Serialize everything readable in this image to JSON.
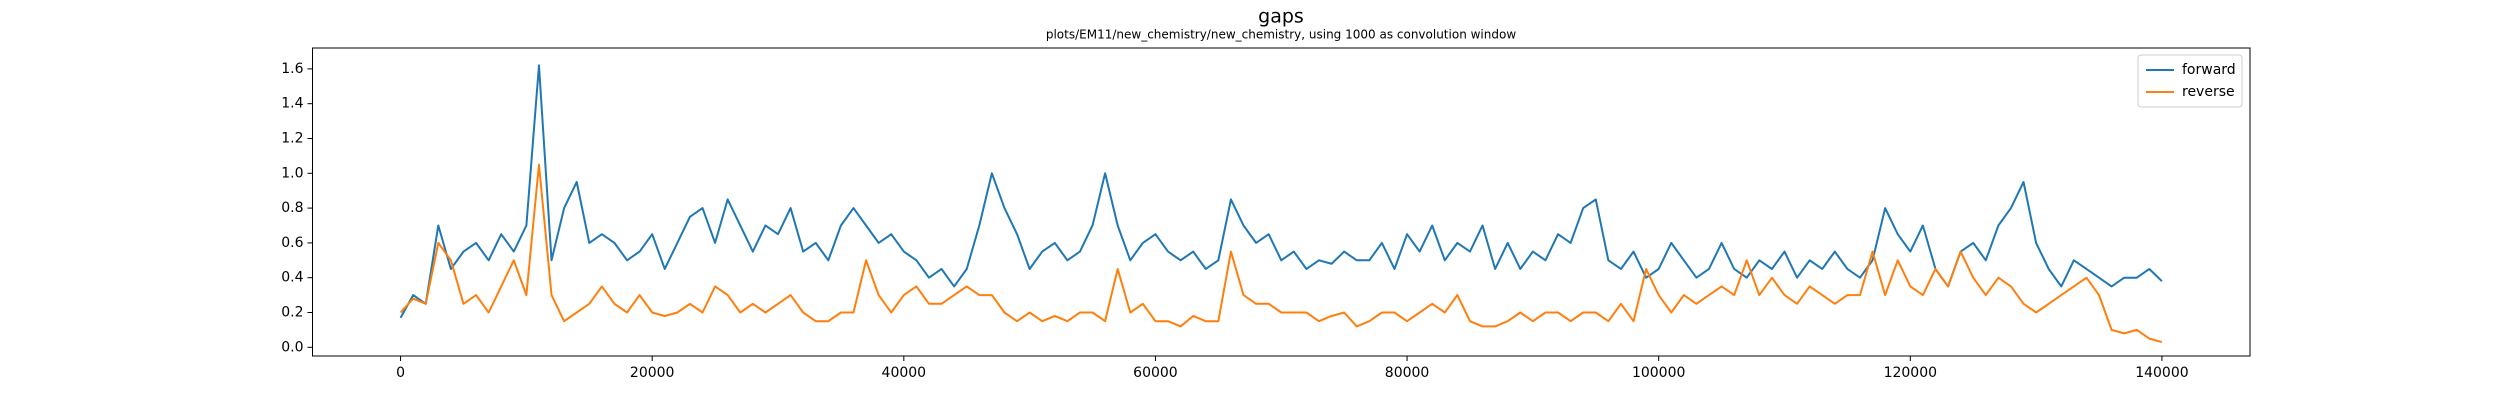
{
  "chart_data": {
    "type": "line",
    "title": "gaps",
    "subtitle": "plots/EM11/new_chemistry/new_chemistry, using 1000 as convolution window",
    "x": [
      0,
      1000,
      2000,
      3000,
      4000,
      5000,
      6000,
      7000,
      8000,
      9000,
      10000,
      11000,
      12000,
      13000,
      14000,
      15000,
      16000,
      17000,
      18000,
      19000,
      20000,
      21000,
      22000,
      23000,
      24000,
      25000,
      26000,
      27000,
      28000,
      29000,
      30000,
      31000,
      32000,
      33000,
      34000,
      35000,
      36000,
      37000,
      38000,
      39000,
      40000,
      41000,
      42000,
      43000,
      44000,
      45000,
      46000,
      47000,
      48000,
      49000,
      50000,
      51000,
      52000,
      53000,
      54000,
      55000,
      56000,
      57000,
      58000,
      59000,
      60000,
      61000,
      62000,
      63000,
      64000,
      65000,
      66000,
      67000,
      68000,
      69000,
      70000,
      71000,
      72000,
      73000,
      74000,
      75000,
      76000,
      77000,
      78000,
      79000,
      80000,
      81000,
      82000,
      83000,
      84000,
      85000,
      86000,
      87000,
      88000,
      89000,
      90000,
      91000,
      92000,
      93000,
      94000,
      95000,
      96000,
      97000,
      98000,
      99000,
      100000,
      101000,
      102000,
      103000,
      104000,
      105000,
      106000,
      107000,
      108000,
      109000,
      110000,
      111000,
      112000,
      113000,
      114000,
      115000,
      116000,
      117000,
      118000,
      119000,
      120000,
      121000,
      122000,
      123000,
      124000,
      125000,
      126000,
      127000,
      128000,
      129000,
      130000,
      131000,
      132000,
      133000,
      134000,
      135000,
      136000,
      137000,
      138000,
      139000,
      140000
    ],
    "series": [
      {
        "name": "forward",
        "color": "#1f77b4",
        "values": [
          0.17,
          0.3,
          0.25,
          0.7,
          0.45,
          0.55,
          0.6,
          0.5,
          0.65,
          0.55,
          0.7,
          1.62,
          0.5,
          0.8,
          0.95,
          0.6,
          0.65,
          0.6,
          0.5,
          0.55,
          0.65,
          0.45,
          0.6,
          0.75,
          0.8,
          0.6,
          0.85,
          0.7,
          0.55,
          0.7,
          0.65,
          0.8,
          0.55,
          0.6,
          0.5,
          0.7,
          0.8,
          0.7,
          0.6,
          0.65,
          0.55,
          0.5,
          0.4,
          0.45,
          0.35,
          0.45,
          0.7,
          1.0,
          0.8,
          0.65,
          0.45,
          0.55,
          0.6,
          0.5,
          0.55,
          0.7,
          1.0,
          0.7,
          0.5,
          0.6,
          0.65,
          0.55,
          0.5,
          0.55,
          0.45,
          0.5,
          0.85,
          0.7,
          0.6,
          0.65,
          0.5,
          0.55,
          0.45,
          0.5,
          0.48,
          0.55,
          0.5,
          0.5,
          0.6,
          0.45,
          0.65,
          0.55,
          0.7,
          0.5,
          0.6,
          0.55,
          0.7,
          0.45,
          0.6,
          0.45,
          0.55,
          0.5,
          0.65,
          0.6,
          0.8,
          0.85,
          0.5,
          0.45,
          0.55,
          0.4,
          0.45,
          0.6,
          0.5,
          0.4,
          0.45,
          0.6,
          0.45,
          0.4,
          0.5,
          0.45,
          0.55,
          0.4,
          0.5,
          0.45,
          0.55,
          0.45,
          0.4,
          0.5,
          0.8,
          0.65,
          0.55,
          0.7,
          0.45,
          0.35,
          0.55,
          0.6,
          0.5,
          0.7,
          0.8,
          0.95,
          0.6,
          0.45,
          0.35,
          0.5,
          0.45,
          0.4,
          0.35,
          0.4,
          0.4,
          0.45,
          0.38
        ]
      },
      {
        "name": "reverse",
        "color": "#ff7f0e",
        "values": [
          0.2,
          0.28,
          0.25,
          0.6,
          0.5,
          0.25,
          0.3,
          0.2,
          0.35,
          0.5,
          0.3,
          1.05,
          0.3,
          0.15,
          0.2,
          0.25,
          0.35,
          0.25,
          0.2,
          0.3,
          0.2,
          0.18,
          0.2,
          0.25,
          0.2,
          0.35,
          0.3,
          0.2,
          0.25,
          0.2,
          0.25,
          0.3,
          0.2,
          0.15,
          0.15,
          0.2,
          0.2,
          0.5,
          0.3,
          0.2,
          0.3,
          0.35,
          0.25,
          0.25,
          0.3,
          0.35,
          0.3,
          0.3,
          0.2,
          0.15,
          0.2,
          0.15,
          0.18,
          0.15,
          0.2,
          0.2,
          0.15,
          0.45,
          0.2,
          0.25,
          0.15,
          0.15,
          0.12,
          0.18,
          0.15,
          0.15,
          0.55,
          0.3,
          0.25,
          0.25,
          0.2,
          0.2,
          0.2,
          0.15,
          0.18,
          0.2,
          0.12,
          0.15,
          0.2,
          0.2,
          0.15,
          0.2,
          0.25,
          0.2,
          0.3,
          0.15,
          0.12,
          0.12,
          0.15,
          0.2,
          0.15,
          0.2,
          0.2,
          0.15,
          0.2,
          0.2,
          0.15,
          0.25,
          0.15,
          0.45,
          0.3,
          0.2,
          0.3,
          0.25,
          0.3,
          0.35,
          0.3,
          0.5,
          0.3,
          0.4,
          0.3,
          0.25,
          0.35,
          0.3,
          0.25,
          0.3,
          0.3,
          0.55,
          0.3,
          0.5,
          0.35,
          0.3,
          0.45,
          0.35,
          0.55,
          0.4,
          0.3,
          0.4,
          0.35,
          0.25,
          0.2,
          0.25,
          0.3,
          0.35,
          0.4,
          0.3,
          0.1,
          0.08,
          0.1,
          0.05,
          0.03
        ]
      }
    ],
    "xlim": [
      -7000,
      147000
    ],
    "xticks": [
      0,
      20000,
      40000,
      60000,
      80000,
      100000,
      120000,
      140000
    ],
    "ylim": [
      -0.05,
      1.72
    ],
    "yticks": [
      {
        "value": 0,
        "label": "0.0"
      },
      0.2,
      0.4,
      0.6,
      0.8,
      {
        "value": 1,
        "label": "1.0"
      },
      1.2,
      1.4,
      1.6
    ],
    "grid": false,
    "legend": "upper right"
  }
}
